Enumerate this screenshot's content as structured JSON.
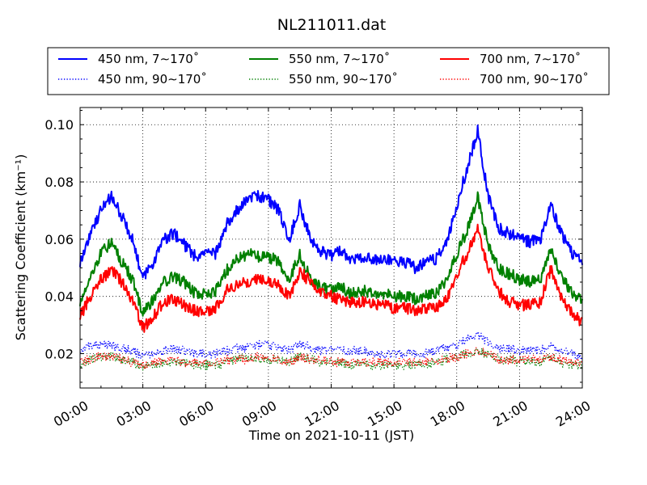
{
  "chart_data": {
    "type": "line",
    "title": "NL211011.dat",
    "xlabel": "Time on 2021-10-11 (JST)",
    "ylabel": "Scattering Coefficient (km⁻¹)",
    "x_tick_labels": [
      "00:00",
      "03:00",
      "06:00",
      "09:00",
      "12:00",
      "15:00",
      "18:00",
      "21:00",
      "24:00"
    ],
    "y_tick_labels": [
      "0.02",
      "0.04",
      "0.06",
      "0.08",
      "0.10"
    ],
    "y_ticks": [
      0.02,
      0.04,
      0.06,
      0.08,
      0.1
    ],
    "xlim": [
      "00:00",
      "24:00"
    ],
    "ylim": [
      0.008,
      0.106
    ],
    "grid": true,
    "legend_position": "top (above plot), 3 columns",
    "x": [
      "00:00",
      "00:30",
      "01:00",
      "01:30",
      "02:00",
      "02:30",
      "03:00",
      "03:30",
      "04:00",
      "04:30",
      "05:00",
      "05:30",
      "06:00",
      "06:30",
      "07:00",
      "07:30",
      "08:00",
      "08:30",
      "09:00",
      "09:30",
      "10:00",
      "10:30",
      "11:00",
      "11:30",
      "12:00",
      "12:30",
      "13:00",
      "13:30",
      "14:00",
      "14:30",
      "15:00",
      "15:30",
      "16:00",
      "16:30",
      "17:00",
      "17:30",
      "18:00",
      "18:30",
      "19:00",
      "19:30",
      "20:00",
      "20:30",
      "21:00",
      "21:30",
      "22:00",
      "22:30",
      "23:00",
      "23:30",
      "24:00"
    ],
    "series": [
      {
        "name": "450 nm, 7∼170˚",
        "color": "#0000ff",
        "style": "solid",
        "values": [
          0.052,
          0.062,
          0.07,
          0.075,
          0.068,
          0.06,
          0.046,
          0.052,
          0.06,
          0.062,
          0.058,
          0.054,
          0.055,
          0.055,
          0.065,
          0.07,
          0.074,
          0.075,
          0.074,
          0.07,
          0.06,
          0.072,
          0.06,
          0.056,
          0.054,
          0.056,
          0.053,
          0.054,
          0.053,
          0.053,
          0.052,
          0.052,
          0.05,
          0.052,
          0.053,
          0.058,
          0.072,
          0.085,
          0.098,
          0.075,
          0.064,
          0.062,
          0.06,
          0.059,
          0.06,
          0.072,
          0.062,
          0.055,
          0.052
        ]
      },
      {
        "name": "550 nm, 7∼170˚",
        "color": "#008000",
        "style": "solid",
        "values": [
          0.038,
          0.047,
          0.055,
          0.059,
          0.052,
          0.046,
          0.034,
          0.039,
          0.045,
          0.047,
          0.045,
          0.041,
          0.041,
          0.042,
          0.049,
          0.053,
          0.055,
          0.054,
          0.054,
          0.052,
          0.046,
          0.055,
          0.046,
          0.043,
          0.042,
          0.043,
          0.041,
          0.042,
          0.041,
          0.041,
          0.04,
          0.04,
          0.039,
          0.04,
          0.041,
          0.045,
          0.055,
          0.063,
          0.075,
          0.058,
          0.05,
          0.048,
          0.046,
          0.045,
          0.046,
          0.057,
          0.047,
          0.041,
          0.039
        ]
      },
      {
        "name": "700 nm, 7∼170˚",
        "color": "#ff0000",
        "style": "solid",
        "values": [
          0.033,
          0.04,
          0.046,
          0.049,
          0.045,
          0.039,
          0.029,
          0.033,
          0.038,
          0.039,
          0.037,
          0.035,
          0.035,
          0.036,
          0.042,
          0.044,
          0.045,
          0.046,
          0.046,
          0.044,
          0.04,
          0.049,
          0.045,
          0.042,
          0.04,
          0.039,
          0.038,
          0.038,
          0.037,
          0.037,
          0.036,
          0.036,
          0.035,
          0.036,
          0.036,
          0.039,
          0.048,
          0.055,
          0.064,
          0.05,
          0.042,
          0.038,
          0.037,
          0.037,
          0.038,
          0.05,
          0.04,
          0.034,
          0.031
        ]
      },
      {
        "name": "450 nm, 90∼170˚",
        "color": "#0000ff",
        "style": "dotted",
        "values": [
          0.021,
          0.023,
          0.023,
          0.023,
          0.022,
          0.021,
          0.019,
          0.02,
          0.021,
          0.022,
          0.021,
          0.02,
          0.02,
          0.02,
          0.021,
          0.022,
          0.022,
          0.023,
          0.023,
          0.022,
          0.021,
          0.024,
          0.022,
          0.021,
          0.021,
          0.021,
          0.021,
          0.021,
          0.02,
          0.02,
          0.02,
          0.02,
          0.02,
          0.02,
          0.021,
          0.022,
          0.023,
          0.025,
          0.027,
          0.024,
          0.022,
          0.022,
          0.021,
          0.021,
          0.021,
          0.023,
          0.021,
          0.02,
          0.019
        ]
      },
      {
        "name": "550 nm, 90∼170˚",
        "color": "#008000",
        "style": "dotted",
        "values": [
          0.016,
          0.018,
          0.019,
          0.019,
          0.018,
          0.017,
          0.015,
          0.016,
          0.017,
          0.017,
          0.017,
          0.016,
          0.016,
          0.016,
          0.017,
          0.018,
          0.018,
          0.018,
          0.018,
          0.018,
          0.017,
          0.019,
          0.018,
          0.017,
          0.017,
          0.017,
          0.016,
          0.017,
          0.016,
          0.016,
          0.016,
          0.016,
          0.016,
          0.016,
          0.017,
          0.018,
          0.019,
          0.02,
          0.021,
          0.02,
          0.018,
          0.018,
          0.017,
          0.017,
          0.017,
          0.019,
          0.017,
          0.016,
          0.016
        ]
      },
      {
        "name": "700 nm, 90∼170˚",
        "color": "#ff0000",
        "style": "dotted",
        "values": [
          0.017,
          0.018,
          0.019,
          0.019,
          0.018,
          0.017,
          0.016,
          0.017,
          0.017,
          0.018,
          0.017,
          0.017,
          0.017,
          0.017,
          0.018,
          0.018,
          0.018,
          0.019,
          0.019,
          0.018,
          0.017,
          0.019,
          0.018,
          0.018,
          0.017,
          0.017,
          0.017,
          0.017,
          0.017,
          0.017,
          0.017,
          0.017,
          0.017,
          0.017,
          0.017,
          0.018,
          0.019,
          0.02,
          0.021,
          0.02,
          0.018,
          0.018,
          0.018,
          0.018,
          0.018,
          0.019,
          0.018,
          0.017,
          0.017
        ]
      }
    ]
  }
}
